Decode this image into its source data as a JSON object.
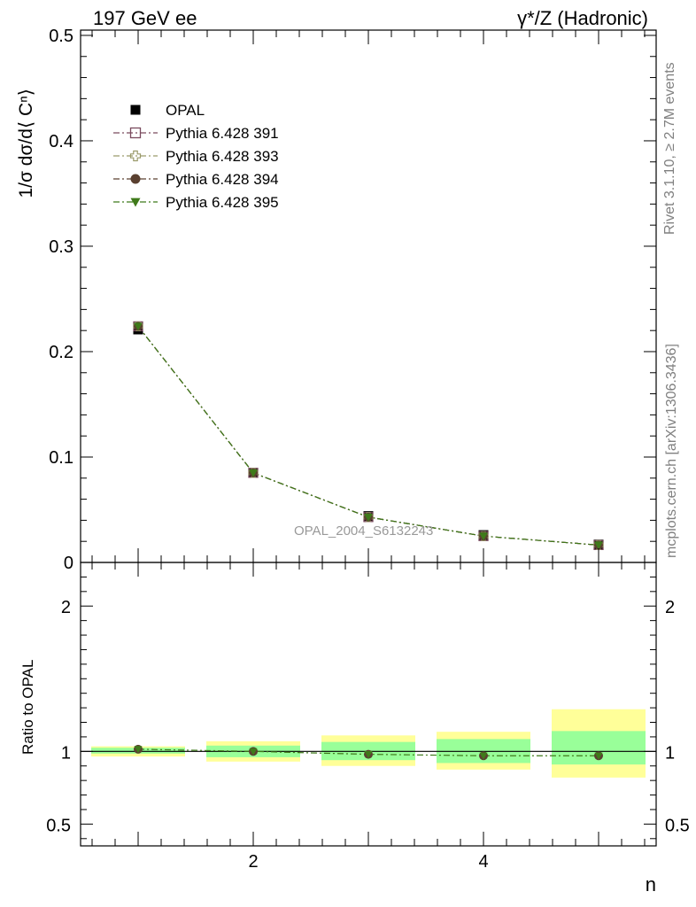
{
  "header": {
    "left": "197 GeV ee",
    "right": "γ*/Z (Hadronic)"
  },
  "side_labels": {
    "rivet": "Rivet 3.1.10, ≥ 2.7M events",
    "mcplots": "mcplots.cern.ch [arXiv:1306.3436]"
  },
  "watermark": "OPAL_2004_S6132243",
  "chart_data": [
    {
      "type": "scatter",
      "panel": "main",
      "ylabel": "1/σ dσ/d⟨ Cⁿ⟩",
      "xlabel": "n",
      "xlim": [
        0.5,
        5.5
      ],
      "ylim": [
        0,
        0.505
      ],
      "y_ticks": [
        "0",
        "0.1",
        "0.2",
        "0.3",
        "0.4",
        "0.5"
      ],
      "x_ticks": [
        "2",
        "4"
      ],
      "legend_position": "top-left",
      "x": [
        1,
        2,
        3,
        4,
        5
      ],
      "series": [
        {
          "name": "OPAL",
          "marker": "filled-square",
          "color": "#000000",
          "values": [
            0.221,
            0.085,
            0.044,
            0.026,
            0.017
          ]
        },
        {
          "name": "Pythia 6.428 391",
          "marker": "open-square",
          "color": "#7a4a5e",
          "values": [
            0.224,
            0.085,
            0.043,
            0.025,
            0.0165
          ]
        },
        {
          "name": "Pythia 6.428 393",
          "marker": "open-cross",
          "color": "#9a9a6a",
          "values": [
            0.224,
            0.085,
            0.043,
            0.025,
            0.0165
          ]
        },
        {
          "name": "Pythia 6.428 394",
          "marker": "filled-circle",
          "color": "#5a4030",
          "values": [
            0.224,
            0.085,
            0.043,
            0.025,
            0.0165
          ]
        },
        {
          "name": "Pythia 6.428 395",
          "marker": "filled-triangle-down",
          "color": "#3f7a1a",
          "values": [
            0.224,
            0.085,
            0.043,
            0.025,
            0.0165
          ]
        }
      ]
    },
    {
      "type": "scatter",
      "panel": "ratio",
      "ylabel": "Ratio to OPAL",
      "ylim": [
        0.35,
        2.3
      ],
      "y_ticks_left": [
        "0.5",
        "1",
        "2"
      ],
      "y_ticks_right": [
        "0.5",
        "1",
        "2"
      ],
      "reference_line": 1,
      "bands": {
        "x_edges": [
          0.5,
          1.5,
          2.5,
          3.5,
          4.5,
          5.5
        ],
        "stat_color": "#99ff99",
        "total_color": "#ffff99",
        "stat": [
          [
            0.985,
            1.025
          ],
          [
            0.96,
            1.04
          ],
          [
            0.94,
            1.065
          ],
          [
            0.92,
            1.085
          ],
          [
            0.91,
            1.14
          ]
        ],
        "total": [
          [
            0.965,
            1.035
          ],
          [
            0.93,
            1.07
          ],
          [
            0.9,
            1.11
          ],
          [
            0.875,
            1.135
          ],
          [
            0.82,
            1.29
          ]
        ]
      },
      "x": [
        1,
        2,
        3,
        4,
        5
      ],
      "values": [
        1.015,
        1.0,
        0.98,
        0.97,
        0.97
      ]
    }
  ]
}
